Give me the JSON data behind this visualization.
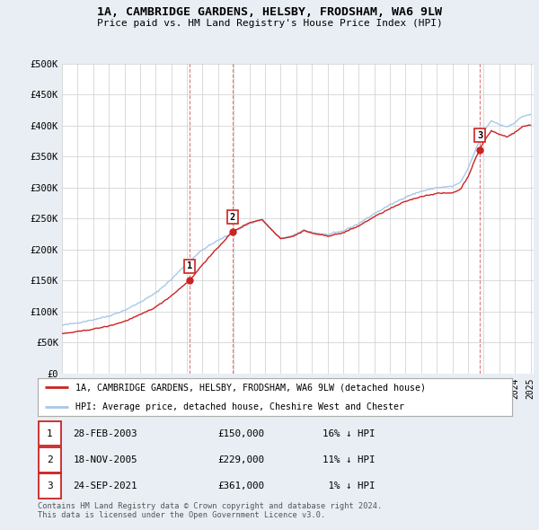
{
  "title": "1A, CAMBRIDGE GARDENS, HELSBY, FRODSHAM, WA6 9LW",
  "subtitle": "Price paid vs. HM Land Registry's House Price Index (HPI)",
  "ylim": [
    0,
    500000
  ],
  "yticks": [
    0,
    50000,
    100000,
    150000,
    200000,
    250000,
    300000,
    350000,
    400000,
    450000,
    500000
  ],
  "ytick_labels": [
    "£0",
    "£50K",
    "£100K",
    "£150K",
    "£200K",
    "£250K",
    "£300K",
    "£350K",
    "£400K",
    "£450K",
    "£500K"
  ],
  "hpi_color": "#a8c8e8",
  "sale_color": "#cc2222",
  "background_color": "#e8eef4",
  "chart_bg": "#ffffff",
  "grid_color": "#cccccc",
  "sale_year_vals": [
    2003.167,
    2005.917,
    2021.75
  ],
  "sale_prices": [
    150000,
    229000,
    361000
  ],
  "sale_labels": [
    "1",
    "2",
    "3"
  ],
  "legend_property": "1A, CAMBRIDGE GARDENS, HELSBY, FRODSHAM, WA6 9LW (detached house)",
  "legend_hpi": "HPI: Average price, detached house, Cheshire West and Chester",
  "table_rows": [
    {
      "label": "1",
      "date": "28-FEB-2003",
      "price": "£150,000",
      "hpi": "16% ↓ HPI"
    },
    {
      "label": "2",
      "date": "18-NOV-2005",
      "price": "£229,000",
      "hpi": "11% ↓ HPI"
    },
    {
      "label": "3",
      "date": "24-SEP-2021",
      "price": "£361,000",
      "hpi": " 1% ↓ HPI"
    }
  ],
  "footnote1": "Contains HM Land Registry data © Crown copyright and database right 2024.",
  "footnote2": "This data is licensed under the Open Government Licence v3.0.",
  "xstart": 1995,
  "xend": 2025
}
